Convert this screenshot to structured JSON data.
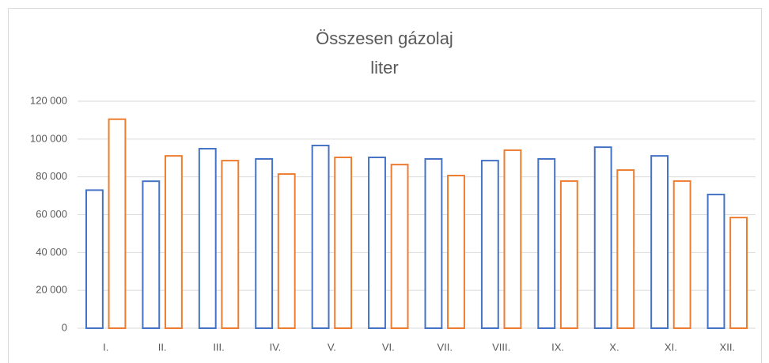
{
  "chart_data": {
    "type": "bar",
    "title": "Összesen gázolaj",
    "subtitle": "liter",
    "categories": [
      "I.",
      "II.",
      "III.",
      "IV.",
      "V.",
      "VI.",
      "VII.",
      "VIII.",
      "IX.",
      "X.",
      "XI.",
      "XII."
    ],
    "series": [
      {
        "color": "#4472c4",
        "values": [
          73000,
          77700,
          94900,
          89500,
          96600,
          90300,
          89500,
          88600,
          89500,
          95700,
          91100,
          70700
        ]
      },
      {
        "color": "#ed7d31",
        "values": [
          110500,
          91100,
          88600,
          81500,
          90300,
          86500,
          80700,
          94100,
          77800,
          83600,
          77800,
          58500
        ]
      }
    ],
    "ylim": [
      0,
      120000
    ],
    "yticks": [
      0,
      {
        "value": 20000,
        "label": "20 000"
      },
      {
        "value": 40000,
        "label": "40 000"
      },
      {
        "value": 60000,
        "label": "60 000"
      },
      {
        "value": 80000,
        "label": "80 000"
      },
      {
        "value": 100000,
        "label": "100 000"
      },
      {
        "value": 120000,
        "label": "120 000"
      }
    ],
    "grid": true
  }
}
